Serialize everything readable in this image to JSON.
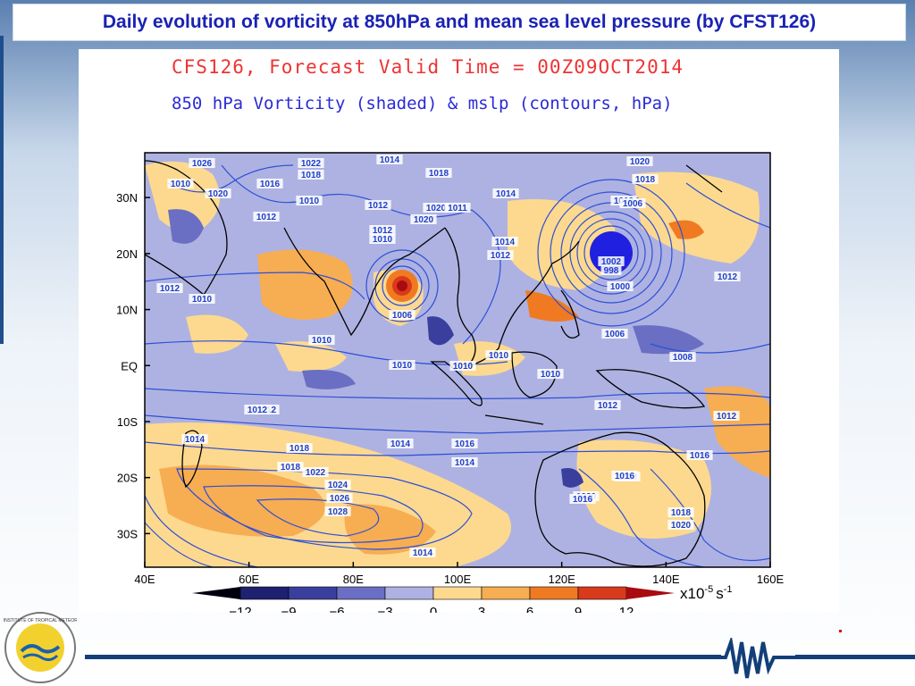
{
  "slide": {
    "title": "Daily evolution of vorticity at 850hPa and mean sea level pressure (by CFST126)"
  },
  "figure": {
    "header_line1": "CFS126, Forecast Valid Time = 00Z09OCT2014",
    "header_line2": "850 hPa Vorticity (shaded) & mslp (contours, hPa)",
    "lat_labels": [
      "30N",
      "20N",
      "10N",
      "EQ",
      "10S",
      "20S",
      "30S"
    ],
    "lon_labels": [
      "40E",
      "60E",
      "80E",
      "100E",
      "120E",
      "140E",
      "160E"
    ],
    "colorbar": {
      "ticks": [
        "−12",
        "−9",
        "−6",
        "−3",
        "0",
        "3",
        "6",
        "9",
        "12"
      ],
      "unit_base": "x10",
      "unit_exp": "-5",
      "unit_tail": "s",
      "unit_tail_exp": "-1",
      "colors": [
        "#000010",
        "#1e2070",
        "#3a3f9e",
        "#6a6fc3",
        "#aeb2e2",
        "#fcd98f",
        "#f7ad52",
        "#f07a22",
        "#d83a1b",
        "#a80b10"
      ]
    },
    "contour_labels": [
      "1026",
      "1022",
      "1018",
      "1014",
      "1018",
      "1020",
      "1018",
      "1010",
      "1016",
      "1020",
      "1014",
      "1010",
      "1010",
      "1012",
      "1012",
      "1020",
      "1011",
      "1020",
      "1012",
      "1006",
      "1010",
      "1014",
      "1012",
      "1012",
      "1010",
      "1006",
      "1000",
      "1012",
      "1010",
      "1010",
      "1006",
      "1008",
      "1010",
      "1010",
      "1012",
      "1010",
      "1012",
      "1012",
      "1012",
      "1014",
      "1018",
      "1014",
      "1016",
      "1018",
      "1014",
      "1016",
      "1018",
      "1020",
      "1022",
      "1024",
      "1026",
      "1028",
      "1014",
      "1016",
      "1018",
      "1020",
      "1016",
      "1002",
      "998"
    ]
  },
  "logo": {
    "text": "INDIAN INSTITUTE OF TROPICAL METEOROLOGY"
  }
}
